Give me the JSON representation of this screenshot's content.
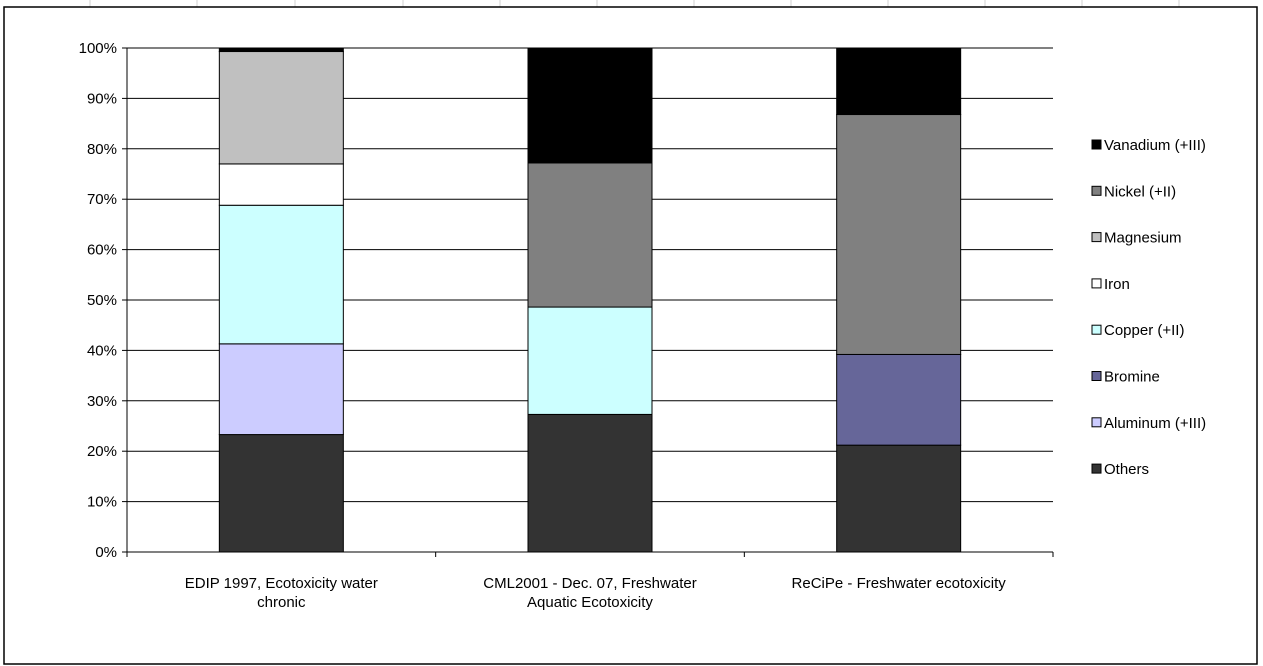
{
  "chart_data": {
    "type": "bar",
    "stacked": "percent",
    "title": "",
    "xlabel": "",
    "ylabel": "",
    "ylim": [
      0,
      100
    ],
    "y_tick_labels": [
      "0%",
      "10%",
      "20%",
      "30%",
      "40%",
      "50%",
      "60%",
      "70%",
      "80%",
      "90%",
      "100%"
    ],
    "grid": true,
    "legend_placement": "right",
    "categories": [
      [
        "EDIP 1997,  Ecotoxicity water",
        "chronic"
      ],
      [
        "CML2001 - Dec. 07, Freshwater",
        "Aquatic Ecotoxicity"
      ],
      [
        "ReCiPe - Freshwater  ecotoxicity"
      ]
    ],
    "series": [
      {
        "name": "Others",
        "color": "#333333",
        "values": [
          23.3,
          27.3,
          21.2
        ]
      },
      {
        "name": "Aluminum (+III)",
        "color": "#ccccff",
        "values": [
          18.0,
          0,
          0
        ]
      },
      {
        "name": "Bromine",
        "color": "#666699",
        "values": [
          0,
          0,
          18.0
        ]
      },
      {
        "name": "Copper (+II)",
        "color": "#ccffff",
        "values": [
          27.5,
          21.3,
          0
        ]
      },
      {
        "name": "Iron",
        "color": "#ffffff",
        "values": [
          8.2,
          0,
          0
        ]
      },
      {
        "name": "Magnesium",
        "color": "#c0c0c0",
        "values": [
          22.3,
          0,
          0
        ]
      },
      {
        "name": "Nickel (+II)",
        "color": "#808080",
        "values": [
          0,
          28.6,
          47.6
        ]
      },
      {
        "name": "Vanadium (+III)",
        "color": "#000000",
        "values": [
          0.7,
          22.8,
          13.2
        ]
      }
    ]
  }
}
